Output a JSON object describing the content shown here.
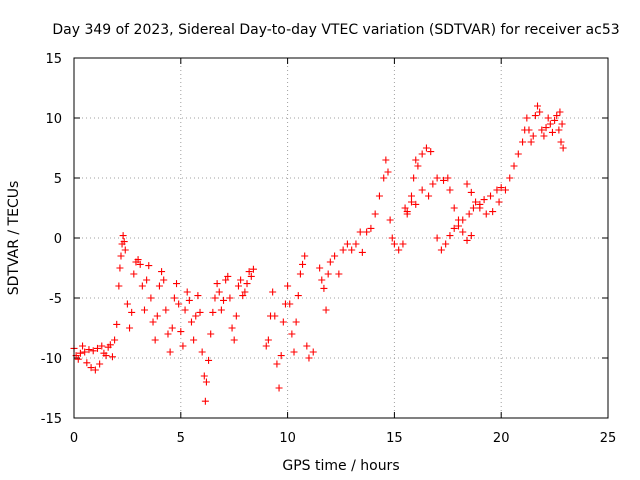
{
  "chart_data": {
    "type": "scatter",
    "title": "Day 349 of 2023, Sidereal Day-to-day VTEC variation (SDTVAR) for receiver ac53",
    "xlabel": "GPS time / hours",
    "ylabel": "SDTVAR / TECUs",
    "xlim": [
      0,
      25
    ],
    "ylim": [
      -15,
      15
    ],
    "xticks": [
      0,
      5,
      10,
      15,
      20,
      25
    ],
    "yticks": [
      -15,
      -10,
      -5,
      0,
      5,
      10,
      15
    ],
    "xtick_labels": [
      "0",
      "5",
      "10",
      "15",
      "20",
      "25"
    ],
    "ytick_labels": [
      "-15",
      "-10",
      "-5",
      "0",
      "5",
      "10",
      "15"
    ],
    "grid": true,
    "marker": "+",
    "series": [
      {
        "name": "SDTVAR",
        "color": "#ff0000",
        "points": [
          [
            0.0,
            -9.2
          ],
          [
            0.1,
            -9.8
          ],
          [
            0.2,
            -10.1
          ],
          [
            0.3,
            -9.6
          ],
          [
            0.4,
            -9.0
          ],
          [
            0.5,
            -9.5
          ],
          [
            0.6,
            -10.4
          ],
          [
            0.7,
            -9.3
          ],
          [
            0.8,
            -10.8
          ],
          [
            0.9,
            -9.4
          ],
          [
            1.0,
            -11.0
          ],
          [
            1.1,
            -9.2
          ],
          [
            1.2,
            -10.5
          ],
          [
            1.3,
            -9.0
          ],
          [
            1.4,
            -9.6
          ],
          [
            1.5,
            -9.8
          ],
          [
            1.6,
            -9.1
          ],
          [
            1.7,
            -8.9
          ],
          [
            1.8,
            -9.9
          ],
          [
            1.9,
            -8.5
          ],
          [
            2.0,
            -7.2
          ],
          [
            2.1,
            -4.0
          ],
          [
            2.15,
            -2.5
          ],
          [
            2.2,
            -1.5
          ],
          [
            2.25,
            -0.5
          ],
          [
            2.3,
            0.2
          ],
          [
            2.35,
            -0.3
          ],
          [
            2.4,
            -1.0
          ],
          [
            2.5,
            -5.5
          ],
          [
            2.6,
            -7.5
          ],
          [
            2.7,
            -6.2
          ],
          [
            2.8,
            -3.0
          ],
          [
            2.9,
            -2.0
          ],
          [
            3.0,
            -1.8
          ],
          [
            3.1,
            -2.2
          ],
          [
            3.2,
            -4.0
          ],
          [
            3.3,
            -6.0
          ],
          [
            3.4,
            -3.5
          ],
          [
            3.5,
            -2.3
          ],
          [
            3.6,
            -5.0
          ],
          [
            3.7,
            -7.0
          ],
          [
            3.8,
            -8.5
          ],
          [
            3.9,
            -6.5
          ],
          [
            4.0,
            -4.0
          ],
          [
            4.1,
            -2.8
          ],
          [
            4.2,
            -3.5
          ],
          [
            4.3,
            -6.0
          ],
          [
            4.4,
            -8.0
          ],
          [
            4.5,
            -9.5
          ],
          [
            4.6,
            -7.5
          ],
          [
            4.7,
            -5.0
          ],
          [
            4.8,
            -3.8
          ],
          [
            4.9,
            -5.5
          ],
          [
            5.0,
            -7.8
          ],
          [
            5.1,
            -9.0
          ],
          [
            5.2,
            -6.0
          ],
          [
            5.3,
            -4.5
          ],
          [
            5.4,
            -5.2
          ],
          [
            5.5,
            -7.0
          ],
          [
            5.6,
            -8.5
          ],
          [
            5.7,
            -6.5
          ],
          [
            5.8,
            -4.8
          ],
          [
            5.9,
            -6.2
          ],
          [
            6.0,
            -9.5
          ],
          [
            6.1,
            -11.5
          ],
          [
            6.15,
            -13.6
          ],
          [
            6.2,
            -12.0
          ],
          [
            6.3,
            -10.2
          ],
          [
            6.4,
            -8.0
          ],
          [
            6.5,
            -6.2
          ],
          [
            6.6,
            -5.0
          ],
          [
            6.7,
            -3.8
          ],
          [
            6.8,
            -4.5
          ],
          [
            6.9,
            -6.0
          ],
          [
            7.0,
            -5.2
          ],
          [
            7.1,
            -3.5
          ],
          [
            7.2,
            -3.2
          ],
          [
            7.3,
            -5.0
          ],
          [
            7.4,
            -7.5
          ],
          [
            7.5,
            -8.5
          ],
          [
            7.6,
            -6.5
          ],
          [
            7.7,
            -4.0
          ],
          [
            7.8,
            -3.5
          ],
          [
            7.9,
            -4.8
          ],
          [
            8.0,
            -4.5
          ],
          [
            8.1,
            -3.8
          ],
          [
            8.2,
            -2.8
          ],
          [
            8.3,
            -3.2
          ],
          [
            8.4,
            -2.6
          ],
          [
            9.0,
            -9.0
          ],
          [
            9.1,
            -8.5
          ],
          [
            9.2,
            -6.5
          ],
          [
            9.3,
            -4.5
          ],
          [
            9.4,
            -6.5
          ],
          [
            9.5,
            -10.5
          ],
          [
            9.6,
            -12.5
          ],
          [
            9.7,
            -9.8
          ],
          [
            9.8,
            -7.0
          ],
          [
            9.9,
            -5.5
          ],
          [
            10.0,
            -4.0
          ],
          [
            10.1,
            -5.5
          ],
          [
            10.2,
            -8.0
          ],
          [
            10.3,
            -9.5
          ],
          [
            10.4,
            -7.0
          ],
          [
            10.5,
            -4.8
          ],
          [
            10.6,
            -3.0
          ],
          [
            10.7,
            -2.2
          ],
          [
            10.8,
            -1.5
          ],
          [
            10.9,
            -9.0
          ],
          [
            11.0,
            -10.0
          ],
          [
            11.2,
            -9.5
          ],
          [
            11.5,
            -2.5
          ],
          [
            11.6,
            -3.5
          ],
          [
            11.7,
            -4.2
          ],
          [
            11.8,
            -6.0
          ],
          [
            11.9,
            -3.0
          ],
          [
            12.0,
            -2.0
          ],
          [
            12.2,
            -1.5
          ],
          [
            12.4,
            -3.0
          ],
          [
            12.6,
            -1.0
          ],
          [
            12.8,
            -0.5
          ],
          [
            13.0,
            -1.0
          ],
          [
            13.2,
            -0.5
          ],
          [
            13.4,
            0.5
          ],
          [
            13.5,
            -1.2
          ],
          [
            13.7,
            0.5
          ],
          [
            13.9,
            0.8
          ],
          [
            14.1,
            2.0
          ],
          [
            14.3,
            3.5
          ],
          [
            14.5,
            5.0
          ],
          [
            14.6,
            6.5
          ],
          [
            14.7,
            5.5
          ],
          [
            14.8,
            1.5
          ],
          [
            14.9,
            0.0
          ],
          [
            15.0,
            -0.5
          ],
          [
            15.2,
            -1.0
          ],
          [
            15.4,
            -0.5
          ],
          [
            15.6,
            2.0
          ],
          [
            15.8,
            3.5
          ],
          [
            15.9,
            5.0
          ],
          [
            16.0,
            6.5
          ],
          [
            16.1,
            6.0
          ],
          [
            16.3,
            7.0
          ],
          [
            16.5,
            7.5
          ],
          [
            16.7,
            7.2
          ],
          [
            15.5,
            2.5
          ],
          [
            15.6,
            2.2
          ],
          [
            15.8,
            3.0
          ],
          [
            16.0,
            2.8
          ],
          [
            16.3,
            4.0
          ],
          [
            16.6,
            3.5
          ],
          [
            16.8,
            4.5
          ],
          [
            17.0,
            5.0
          ],
          [
            17.3,
            4.8
          ],
          [
            17.5,
            5.0
          ],
          [
            17.6,
            4.0
          ],
          [
            17.8,
            2.5
          ],
          [
            18.0,
            1.5
          ],
          [
            18.2,
            0.5
          ],
          [
            18.4,
            -0.2
          ],
          [
            18.6,
            0.2
          ],
          [
            17.0,
            0.0
          ],
          [
            17.2,
            -1.0
          ],
          [
            17.4,
            -0.5
          ],
          [
            17.6,
            0.2
          ],
          [
            17.8,
            0.8
          ],
          [
            18.0,
            1.0
          ],
          [
            18.2,
            1.5
          ],
          [
            18.5,
            2.0
          ],
          [
            18.7,
            2.5
          ],
          [
            19.0,
            2.8
          ],
          [
            19.2,
            3.2
          ],
          [
            19.5,
            3.5
          ],
          [
            19.8,
            4.0
          ],
          [
            20.0,
            4.2
          ],
          [
            18.4,
            4.5
          ],
          [
            18.6,
            3.8
          ],
          [
            18.8,
            3.0
          ],
          [
            19.0,
            2.5
          ],
          [
            19.3,
            2.0
          ],
          [
            19.6,
            2.2
          ],
          [
            19.9,
            3.0
          ],
          [
            20.2,
            4.0
          ],
          [
            20.4,
            5.0
          ],
          [
            20.6,
            6.0
          ],
          [
            20.8,
            7.0
          ],
          [
            21.0,
            8.0
          ],
          [
            21.1,
            9.0
          ],
          [
            21.2,
            10.0
          ],
          [
            21.3,
            9.0
          ],
          [
            21.4,
            8.0
          ],
          [
            21.5,
            8.5
          ],
          [
            21.6,
            10.2
          ],
          [
            21.7,
            11.0
          ],
          [
            21.8,
            10.5
          ],
          [
            21.9,
            9.0
          ],
          [
            22.0,
            8.5
          ],
          [
            22.1,
            9.2
          ],
          [
            22.2,
            10.0
          ],
          [
            22.3,
            9.5
          ],
          [
            22.4,
            8.8
          ],
          [
            22.5,
            9.8
          ],
          [
            22.6,
            10.2
          ],
          [
            22.7,
            9.0
          ],
          [
            22.8,
            8.0
          ],
          [
            22.9,
            7.5
          ],
          [
            22.85,
            9.5
          ],
          [
            22.75,
            10.5
          ]
        ]
      }
    ]
  }
}
